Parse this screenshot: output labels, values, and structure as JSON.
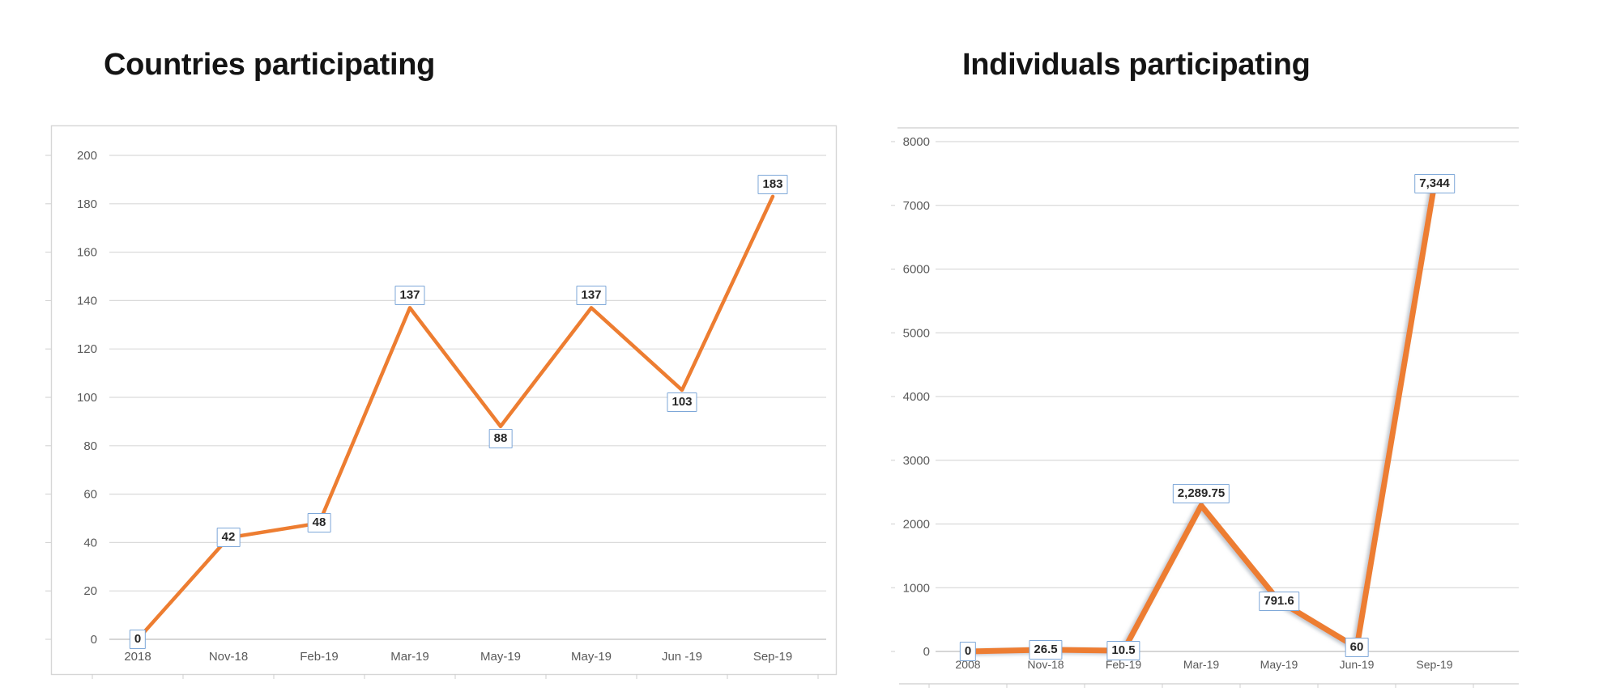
{
  "page": {
    "background": "#ffffff"
  },
  "chart_data": [
    {
      "type": "line",
      "title": "Countries participating",
      "categories": [
        "2018",
        "Nov-18",
        "Feb-19",
        "Mar-19",
        "May-19",
        "May-19",
        "Jun -19",
        "Sep-19"
      ],
      "values": [
        0,
        42,
        48,
        137,
        88,
        137,
        103,
        183
      ],
      "data_labels": [
        "0",
        "42",
        "48",
        "137",
        "88",
        "137",
        "103",
        "183"
      ],
      "label_pos": [
        "center",
        "center",
        "center",
        "above",
        "below",
        "above",
        "below",
        "above"
      ],
      "xlabel": "",
      "ylabel": "",
      "ylim": [
        0,
        200
      ],
      "yticks": [
        "0",
        "20",
        "40",
        "60",
        "80",
        "100",
        "120",
        "140",
        "160",
        "180",
        "200"
      ],
      "grid": true,
      "legend": "none",
      "line_color": "#ED7D31"
    },
    {
      "type": "line",
      "title": "Individuals participating",
      "categories": [
        "2008",
        "Nov-18",
        "Feb-19",
        "Mar-19",
        "May-19",
        "Jun-19",
        "Sep-19"
      ],
      "values": [
        0,
        26.5,
        10.5,
        2289.75,
        791.6,
        60,
        7344
      ],
      "data_labels": [
        "0",
        "26.5",
        "10.5",
        "2,289.75",
        "791.6",
        "60",
        "7,344"
      ],
      "label_pos": [
        "center",
        "center",
        "center",
        "above",
        "center",
        "center",
        "center"
      ],
      "xlabel": "",
      "ylabel": "",
      "ylim": [
        0,
        8000
      ],
      "yticks": [
        "0",
        "1000",
        "2000",
        "3000",
        "4000",
        "5000",
        "6000",
        "7000",
        "8000"
      ],
      "grid": true,
      "legend": "none",
      "line_color": "#ED7D31"
    }
  ],
  "styles": {
    "line_color": "#ED7D31",
    "gridline_color": "#DADADA",
    "zero_line_color": "#C8C8C8",
    "panel_border_color": "#D6D6D6",
    "axis_text_color": "#595959",
    "data_label_border_color": "#7DA7D8",
    "data_label_text_color": "#262626",
    "title_color": "#141414"
  }
}
